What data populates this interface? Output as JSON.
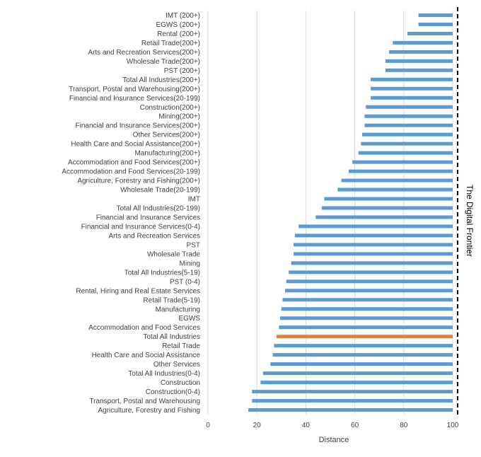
{
  "chart_data": {
    "type": "bar",
    "orientation": "horizontal",
    "title": "",
    "xlabel": "Distance",
    "ylabel": "",
    "xlim": [
      0,
      100
    ],
    "xticks": [
      0,
      20,
      40,
      60,
      80,
      100
    ],
    "grid": true,
    "frontier": {
      "value": 102,
      "label": "The Digital Frontier"
    },
    "bar_color": "#5b9bd5",
    "highlight_color": "#ed7d31",
    "highlight_category": "Total All Industries",
    "categories": [
      "IMT (200+)",
      "EGWS (200+)",
      "Rental (200+)",
      "Retail Trade(200+)",
      "Arts and Recreation Services(200+)",
      "Wholesale Trade(200+)",
      "PST (200+)",
      "Total All Industries(200+)",
      "Transport, Postal and Warehousing(200+)",
      "Financial and Insurance Services(20-199)",
      "Construction(200+)",
      "Mining(200+)",
      "Financial and Insurance Services(200+)",
      "Other Services(200+)",
      "Health Care and Social Assistance(200+)",
      "Manufacturing(200+)",
      "Accommodation and Food Services(200+)",
      "Accommodation and Food Services(20-199)",
      "Agriculture, Forestry and Fishing(200+)",
      "Wholesale Trade(20-199)",
      "IMT",
      "Total All Industries(20-199)",
      "Financial and Insurance Services",
      "Financial and Insurance Services(0-4)",
      "Arts and Recreation Services",
      "PST",
      "Wholesale Trade",
      "Mining",
      "Total All Industries(5-19)",
      "PST (0-4)",
      "Rental, Hiring and Real Estate Services",
      "Retail Trade(5-19)",
      "Manufacturing",
      "EGWS",
      "Accommodation and Food Services",
      "Total All Industries",
      "Retail Trade",
      "Health Care and Social Assistance",
      "Other Services",
      "Total All Industries(0-4)",
      "Construction",
      "Construction(0-4)",
      "Transport, Postal and Warehousing",
      "Agriculture, Forestry and Fishing"
    ],
    "values": [
      86,
      86,
      81.5,
      75.5,
      74,
      72.5,
      72.5,
      66.5,
      66.5,
      66.5,
      64.5,
      64,
      64,
      63,
      62.5,
      61.5,
      59,
      57.5,
      54.5,
      53,
      47.5,
      46.5,
      44,
      37,
      35.5,
      35,
      35,
      34,
      33,
      32,
      31.5,
      30.5,
      30,
      29.5,
      29,
      28,
      27,
      26.5,
      25.5,
      22.5,
      21.5,
      18,
      18,
      16.5
    ]
  }
}
